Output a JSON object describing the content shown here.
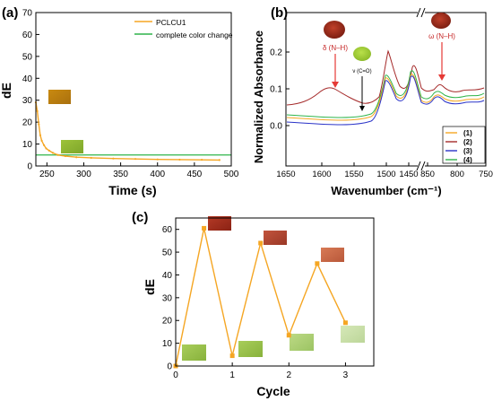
{
  "panels": {
    "a": {
      "letter": "(a)"
    },
    "b": {
      "letter": "(b)"
    },
    "c": {
      "letter": "(c)"
    }
  },
  "colors": {
    "orange": "#f5a623",
    "green": "#2fb44a",
    "brown": "#a52a2a",
    "blue": "#2a33c8",
    "dark_green": "#1f8f3a"
  },
  "chart_data": [
    {
      "type": "line",
      "panel": "(a)",
      "xlabel": "Time (s)",
      "ylabel": "dE",
      "xlim": [
        235,
        500
      ],
      "ylim": [
        0,
        70
      ],
      "x_ticks": [
        250,
        300,
        350,
        400,
        450,
        500
      ],
      "y_ticks": [
        0,
        10,
        20,
        30,
        40,
        50,
        60,
        70
      ],
      "legend_position": "top-right",
      "series": [
        {
          "name": "PCLCU1",
          "color": "#f5a623",
          "x": [
            235,
            237,
            239,
            241,
            243,
            246,
            249,
            253,
            258,
            265,
            275,
            290,
            310,
            340,
            370,
            400,
            430,
            460,
            484
          ],
          "y": [
            29,
            25,
            19,
            14,
            11.5,
            9.5,
            8,
            7,
            6,
            5,
            4.5,
            4,
            3.7,
            3.4,
            3.2,
            3.0,
            2.9,
            2.8,
            2.7
          ]
        },
        {
          "name": "complete color change",
          "color": "#2fb44a",
          "x": [
            235,
            500
          ],
          "y": [
            5,
            5
          ]
        }
      ]
    },
    {
      "type": "line",
      "panel": "(b)",
      "xlabel": "Wavenumber (cm⁻¹)",
      "ylabel": "Normalized Absorbance",
      "x_reversed": true,
      "axis_break_at": 850,
      "y_ticks": [
        0.0,
        0.1,
        0.2
      ],
      "x_tick_labels": [
        "1650",
        "1600",
        "1550",
        "1500",
        "1450",
        "850",
        "800",
        "750"
      ],
      "legend_position": "bottom-right",
      "annotations": [
        "δ (N–H)",
        "ν (C=O)",
        "ω (N–H)"
      ],
      "series": [
        {
          "name": "(1)",
          "color": "#f5a623"
        },
        {
          "name": "(2)",
          "color": "#a52a2a"
        },
        {
          "name": "(3)",
          "color": "#2a33c8"
        },
        {
          "name": "(4)",
          "color": "#2fb44a"
        }
      ]
    },
    {
      "type": "line",
      "panel": "(c)",
      "xlabel": "Cycle",
      "ylabel": "dE",
      "xlim": [
        0,
        3.5
      ],
      "ylim": [
        0,
        65
      ],
      "x_ticks": [
        0,
        1,
        2,
        3
      ],
      "y_ticks": [
        0,
        10,
        20,
        30,
        40,
        50,
        60
      ],
      "series": [
        {
          "color": "#f5a623",
          "x": [
            0,
            0.5,
            1,
            1.5,
            2,
            2.5,
            3
          ],
          "y": [
            0,
            60.5,
            4.5,
            54,
            13.5,
            45,
            19
          ]
        }
      ]
    }
  ]
}
